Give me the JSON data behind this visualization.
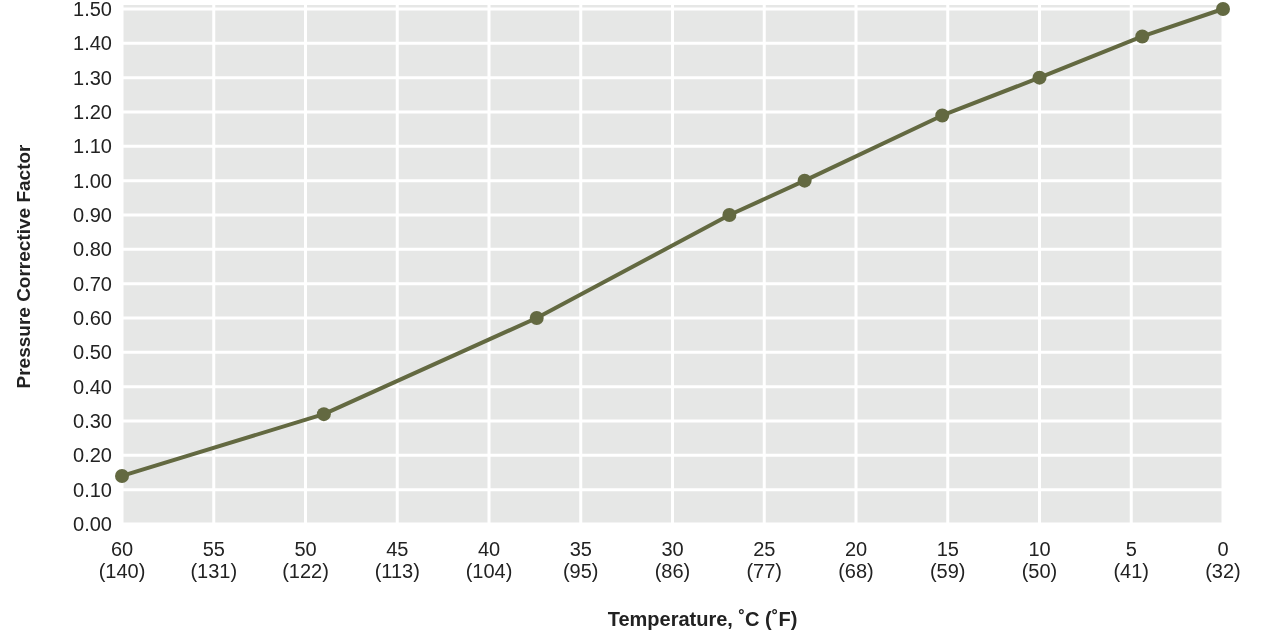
{
  "chart_data": {
    "type": "line",
    "xlabel": "Temperature, ˚C  (˚F)",
    "ylabel": "Pressure Corrective Factor",
    "x": [
      60,
      49,
      37.4,
      26.9,
      22.8,
      15.3,
      10,
      4.4,
      0
    ],
    "series": [
      {
        "color": "#636941",
        "values": [
          0.14,
          0.32,
          0.6,
          0.9,
          1.0,
          1.19,
          1.3,
          1.42,
          1.5
        ]
      }
    ],
    "xlim": [
      60,
      0
    ],
    "xticks": [
      60,
      55,
      50,
      45,
      40,
      35,
      30,
      25,
      20,
      15,
      10,
      5,
      0
    ],
    "x2lim": [
      140,
      32
    ],
    "x2ticks": [
      {
        "value": 140,
        "label": "(140)"
      },
      {
        "value": 131,
        "label": "(131)"
      },
      {
        "value": 122,
        "label": "(122)"
      },
      {
        "value": 113,
        "label": "(113)"
      },
      {
        "value": 104,
        "label": "(104)"
      },
      {
        "value": 95,
        "label": "(95)"
      },
      {
        "value": 86,
        "label": "(86)"
      },
      {
        "value": 77,
        "label": "(77)"
      },
      {
        "value": 68,
        "label": "(68)"
      },
      {
        "value": 59,
        "label": "(59)"
      },
      {
        "value": 50,
        "label": "(50)"
      },
      {
        "value": 41,
        "label": "(41)"
      },
      {
        "value": 32,
        "label": "(32)"
      }
    ],
    "ylim": [
      0,
      1.5
    ],
    "yticks": [
      {
        "value": 0,
        "label": "0.00"
      },
      {
        "value": 0.1,
        "label": "0.10"
      },
      {
        "value": 0.2,
        "label": "0.20"
      },
      {
        "value": 0.3,
        "label": "0.30"
      },
      {
        "value": 0.4,
        "label": "0.40"
      },
      {
        "value": 0.5,
        "label": "0.50"
      },
      {
        "value": 0.6,
        "label": "0.60"
      },
      {
        "value": 0.7,
        "label": "0.70"
      },
      {
        "value": 0.8,
        "label": "0.80"
      },
      {
        "value": 0.9,
        "label": "0.90"
      },
      {
        "value": 1.0,
        "label": "1.00"
      },
      {
        "value": 1.1,
        "label": "1.10"
      },
      {
        "value": 1.2,
        "label": "1.20"
      },
      {
        "value": 1.3,
        "label": "1.30"
      },
      {
        "value": 1.4,
        "label": "1.40"
      },
      {
        "value": 1.5,
        "label": "1.50"
      }
    ],
    "grid": true,
    "marker": "circle",
    "line_style": "solid"
  }
}
